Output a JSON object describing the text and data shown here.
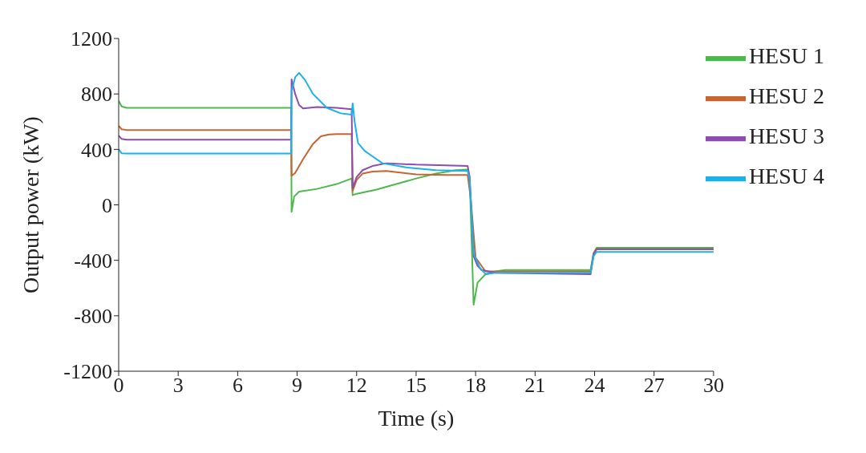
{
  "chart_data": {
    "type": "line",
    "xlabel": "Time (s)",
    "ylabel": "Output power (kW)",
    "xlim": [
      0,
      30
    ],
    "ylim": [
      -1200,
      1200
    ],
    "xticks": [
      0,
      3,
      6,
      9,
      12,
      15,
      18,
      21,
      24,
      27,
      30
    ],
    "yticks": [
      -1200,
      -800,
      -400,
      0,
      400,
      800,
      1200
    ],
    "grid": false,
    "legend": "top right",
    "marker": "none",
    "line_style": "solid",
    "series": [
      {
        "name": "HESU 1",
        "color": "#4cb94c",
        "x": [
          0,
          0.15,
          0.4,
          8.7,
          8.72,
          8.85,
          9.1,
          10,
          11,
          11.75,
          11.8,
          12,
          13,
          14,
          15,
          16,
          17,
          17.6,
          17.7,
          17.9,
          18.1,
          18.5,
          19,
          19.5,
          23.8,
          23.95,
          24.1,
          30
        ],
        "values": [
          750,
          710,
          700,
          700,
          -50,
          60,
          95,
          115,
          150,
          190,
          70,
          80,
          110,
          150,
          190,
          225,
          250,
          255,
          200,
          -720,
          -560,
          -500,
          -480,
          -470,
          -470,
          -350,
          -310,
          -310
        ]
      },
      {
        "name": "HESU 2",
        "color": "#c8642d",
        "x": [
          0,
          0.15,
          0.4,
          8.7,
          8.72,
          8.9,
          9.3,
          9.8,
          10.2,
          10.6,
          11,
          11.75,
          11.8,
          12,
          12.3,
          12.8,
          13.5,
          15,
          16.5,
          17.6,
          17.75,
          18,
          18.5,
          19,
          23.8,
          23.95,
          24.1,
          30
        ],
        "values": [
          570,
          545,
          540,
          540,
          210,
          230,
          330,
          440,
          495,
          508,
          510,
          510,
          100,
          180,
          225,
          240,
          245,
          220,
          215,
          215,
          50,
          -380,
          -480,
          -480,
          -480,
          -350,
          -320,
          -320
        ]
      },
      {
        "name": "HESU 3",
        "color": "#8e4bb0",
        "x": [
          0,
          0.15,
          0.4,
          8.7,
          8.72,
          8.9,
          9.1,
          9.3,
          10,
          11,
          11.75,
          11.8,
          12,
          12.3,
          12.8,
          13.5,
          15,
          16.5,
          17.6,
          17.7,
          17.9,
          18.1,
          18.3,
          19,
          23.8,
          23.95,
          24.1,
          30
        ],
        "values": [
          500,
          475,
          470,
          470,
          905,
          800,
          720,
          696,
          705,
          700,
          690,
          120,
          200,
          250,
          280,
          300,
          290,
          285,
          280,
          200,
          -370,
          -440,
          -470,
          -490,
          -500,
          -360,
          -320,
          -320
        ]
      },
      {
        "name": "HESU 4",
        "color": "#1ab2e8",
        "x": [
          0,
          0.15,
          0.4,
          8.7,
          8.72,
          8.9,
          9.1,
          9.4,
          9.8,
          10.5,
          11.2,
          11.75,
          11.8,
          11.9,
          12.07,
          12.4,
          12.8,
          13.3,
          14.5,
          16,
          17.6,
          17.7,
          17.9,
          18.2,
          18.5,
          19,
          23.8,
          23.95,
          24.1,
          30
        ],
        "values": [
          400,
          372,
          370,
          370,
          820,
          920,
          952,
          900,
          800,
          700,
          660,
          650,
          732,
          600,
          446,
          390,
          350,
          300,
          270,
          250,
          245,
          180,
          -350,
          -450,
          -500,
          -490,
          -490,
          -370,
          -340,
          -340
        ]
      }
    ]
  }
}
